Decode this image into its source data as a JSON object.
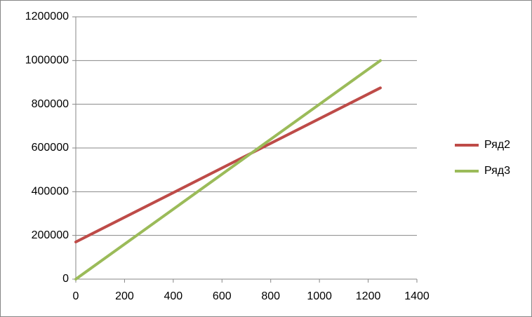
{
  "chart_data": {
    "type": "line",
    "x": [
      0,
      1250
    ],
    "series": [
      {
        "name": "Ряд2",
        "color": "#be4b48",
        "values": [
          170000,
          875000
        ]
      },
      {
        "name": "Ряд3",
        "color": "#9bbb59",
        "values": [
          0,
          1000000
        ]
      }
    ],
    "xlim": [
      0,
      1400
    ],
    "xticks": [
      0,
      200,
      400,
      600,
      800,
      1000,
      1200,
      1400
    ],
    "ylim": [
      0,
      1200000
    ],
    "yticks": [
      0,
      200000,
      400000,
      600000,
      800000,
      1000000,
      1200000
    ],
    "grid": true,
    "legend": "right"
  }
}
